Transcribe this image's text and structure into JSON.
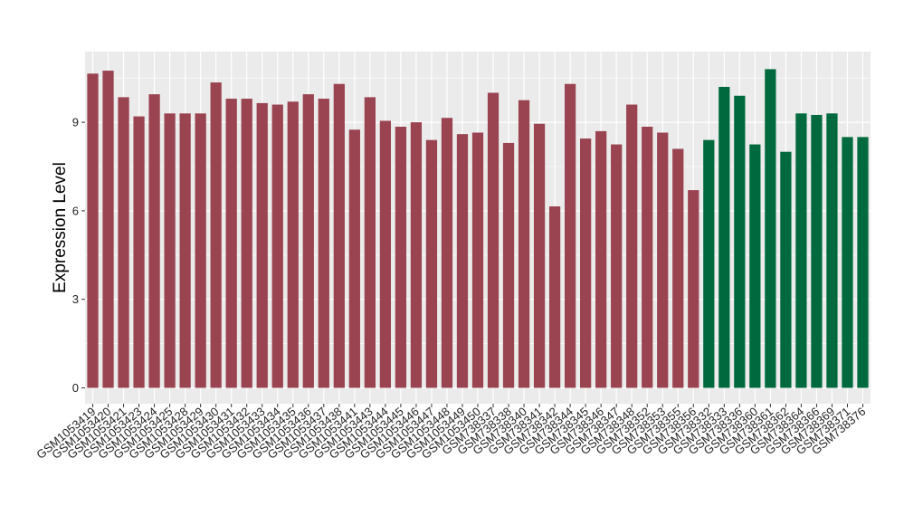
{
  "chart_data": {
    "type": "bar",
    "title": "",
    "xlabel": "",
    "ylabel": "Expression Level",
    "ylim": [
      0,
      11.2
    ],
    "yticks": [
      0,
      3,
      6,
      9
    ],
    "grid": true,
    "legend": "none",
    "panel_color": "#ebebeb",
    "grid_color": "#ffffff",
    "group_colors": {
      "group1": "#9a4451",
      "group2": "#006a3e"
    },
    "categories": [
      "GSM1053419",
      "GSM1053420",
      "GSM1053421",
      "GSM1053423",
      "GSM1053424",
      "GSM1053425",
      "GSM1053428",
      "GSM1053429",
      "GSM1053430",
      "GSM1053431",
      "GSM1053432",
      "GSM1053433",
      "GSM1053434",
      "GSM1053435",
      "GSM1053436",
      "GSM1053437",
      "GSM1053438",
      "GSM1053441",
      "GSM1053443",
      "GSM1053444",
      "GSM1053445",
      "GSM1053446",
      "GSM1053447",
      "GSM1053448",
      "GSM1053449",
      "GSM1053450",
      "GSM738337",
      "GSM738338",
      "GSM738340",
      "GSM738341",
      "GSM738342",
      "GSM738344",
      "GSM738345",
      "GSM738346",
      "GSM738347",
      "GSM738348",
      "GSM738352",
      "GSM738353",
      "GSM738355",
      "GSM738356",
      "GSM738332",
      "GSM738333",
      "GSM738336",
      "GSM738360",
      "GSM738361",
      "GSM738362",
      "GSM738364",
      "GSM738366",
      "GSM738369",
      "GSM738371",
      "GSM738376"
    ],
    "values": [
      10.65,
      10.75,
      9.85,
      9.2,
      9.95,
      9.3,
      9.3,
      9.3,
      10.35,
      9.8,
      9.8,
      9.65,
      9.6,
      9.7,
      9.95,
      9.8,
      10.3,
      8.75,
      9.85,
      9.05,
      8.85,
      9.0,
      8.4,
      9.15,
      8.6,
      8.65,
      10.0,
      8.3,
      9.75,
      8.95,
      6.15,
      10.3,
      8.45,
      8.7,
      8.25,
      9.6,
      8.85,
      8.65,
      8.1,
      6.7,
      8.4,
      10.2,
      9.9,
      8.25,
      10.8,
      8.0,
      9.3,
      9.25,
      9.3,
      8.5,
      8.5
    ],
    "groups": [
      "group1",
      "group1",
      "group1",
      "group1",
      "group1",
      "group1",
      "group1",
      "group1",
      "group1",
      "group1",
      "group1",
      "group1",
      "group1",
      "group1",
      "group1",
      "group1",
      "group1",
      "group1",
      "group1",
      "group1",
      "group1",
      "group1",
      "group1",
      "group1",
      "group1",
      "group1",
      "group1",
      "group1",
      "group1",
      "group1",
      "group1",
      "group1",
      "group1",
      "group1",
      "group1",
      "group1",
      "group1",
      "group1",
      "group1",
      "group1",
      "group2",
      "group2",
      "group2",
      "group2",
      "group2",
      "group2",
      "group2",
      "group2",
      "group2",
      "group2",
      "group2"
    ]
  }
}
